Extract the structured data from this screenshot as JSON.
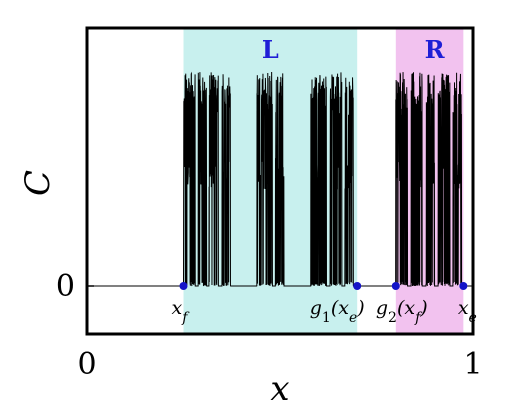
{
  "chart_data": {
    "type": "line",
    "xlabel": "x",
    "ylabel": "C",
    "xlim": [
      0,
      1
    ],
    "x_ticks": [
      {
        "value": 0,
        "label": "0"
      },
      {
        "value": 1,
        "label": "1"
      }
    ],
    "y_ticks": [
      {
        "value": 0,
        "label": "0"
      }
    ],
    "ymax": 1.0,
    "regions": [
      {
        "label": "L",
        "x_start": 0.25,
        "x_end": 0.7,
        "color": "#c8f0ee"
      },
      {
        "label": "R",
        "x_start": 0.8,
        "x_end": 0.975,
        "color": "#f2c2ef"
      }
    ],
    "markers": [
      {
        "x": 0.25,
        "label": "x_f",
        "sub": "f",
        "base": "x"
      },
      {
        "x": 0.7,
        "label": "g1(x_e)",
        "base": "g",
        "sub": "1",
        "arg": "(x",
        "argsub": "e",
        "tail": ")"
      },
      {
        "x": 0.8,
        "label": "g2(x_f)",
        "base": "g",
        "sub": "2",
        "arg": "(x",
        "argsub": "f",
        "tail": ")"
      },
      {
        "x": 0.975,
        "label": "x_e",
        "sub": "e",
        "base": "x"
      }
    ],
    "active_bands": [
      [
        0.25,
        0.28
      ],
      [
        0.288,
        0.31
      ],
      [
        0.316,
        0.34
      ],
      [
        0.35,
        0.372
      ],
      [
        0.44,
        0.48
      ],
      [
        0.488,
        0.51
      ],
      [
        0.58,
        0.62
      ],
      [
        0.63,
        0.66
      ],
      [
        0.668,
        0.69
      ],
      [
        0.8,
        0.83
      ],
      [
        0.84,
        0.868
      ],
      [
        0.878,
        0.9
      ],
      [
        0.91,
        0.94
      ],
      [
        0.948,
        0.97
      ]
    ],
    "line_color": "#000000",
    "marker_color": "#1414c8",
    "grid": false
  }
}
